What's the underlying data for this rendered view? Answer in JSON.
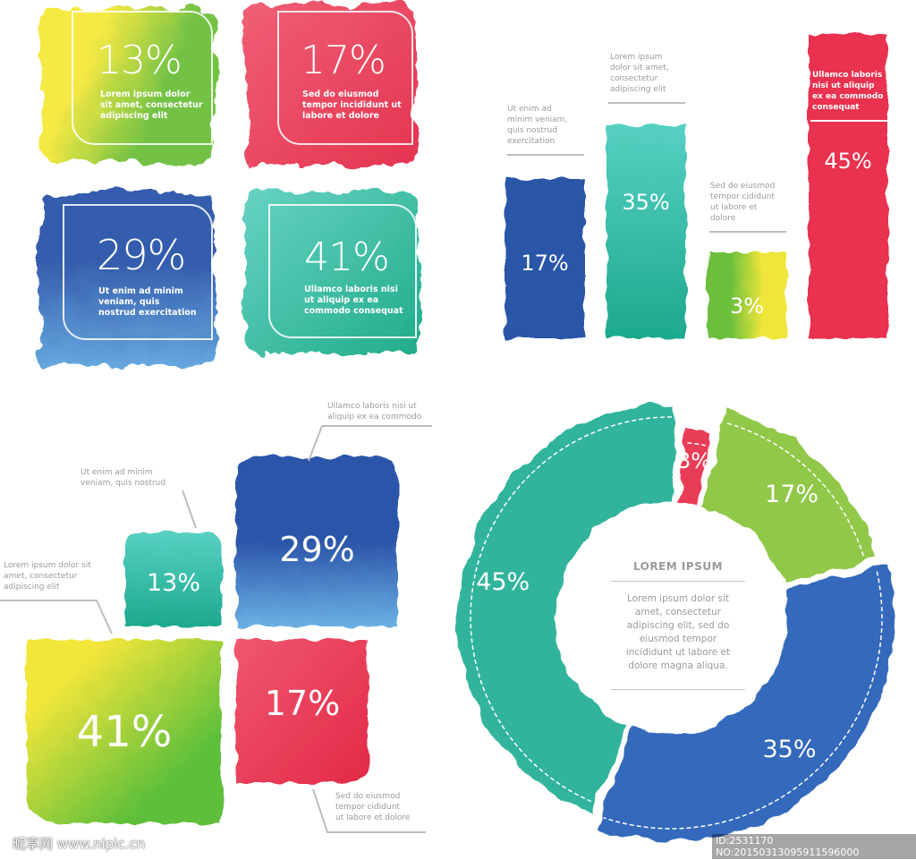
{
  "chart_data": [
    {
      "type": "table",
      "label": "callout boxes",
      "items": [
        {
          "value": "13%",
          "text": [
            "Lorem ipsum dolor",
            "sit amet, consectetur",
            "adipiscing elit"
          ],
          "color": "#8bc53f"
        },
        {
          "value": "17%",
          "text": [
            "Sed do eiusmod",
            "tempor incididunt ut",
            "labore et dolore"
          ],
          "color": "#e8314f"
        },
        {
          "value": "29%",
          "text": [
            "Ut enim ad minim",
            "veniam, quis",
            "nostrud exercitation"
          ],
          "color": "#2a56a8"
        },
        {
          "value": "41%",
          "text": [
            "Ullamco laboris nisi",
            "ut aliquip ex ea",
            "commodo consequat"
          ],
          "color": "#1fae8f"
        }
      ]
    },
    {
      "type": "bar",
      "categories": [
        "17%",
        "35%",
        "3%",
        "45%"
      ],
      "values": [
        17,
        35,
        3,
        45
      ],
      "labels": [
        "17%",
        "35%",
        "3%",
        "45%"
      ],
      "annotations": [
        [
          "Ut enim ad",
          "minim veniam,",
          "quis nostrud",
          "exercitation"
        ],
        [
          "Lorem ipsum",
          "dolor sit amet,",
          "consectetur",
          "adipiscing elit"
        ],
        [
          "Sed do eiusmod",
          "tempor cididunt",
          "ut labore et",
          "dolore"
        ],
        [
          "Ullamco laboris",
          "nisi ut aliquip",
          "ex ea commodo",
          "consequat"
        ]
      ],
      "colors": [
        "#2a56a8",
        "#27b39a",
        "#9ccc3a",
        "#e8314f"
      ],
      "ylim": [
        0,
        45
      ]
    },
    {
      "type": "table",
      "label": "quadrant blobs",
      "items": [
        {
          "value": "13%",
          "text": [
            "Ut enim ad minim",
            "veniam, quis nostrud"
          ],
          "color": "#23a98a"
        },
        {
          "value": "29%",
          "text": [
            "Ullamco laboris nisi ut",
            "aliquip ex ea commodo"
          ],
          "color": "#2a56a8"
        },
        {
          "value": "41%",
          "text": [
            "Lorem ipsum dolor sit",
            "amet, consectetur",
            "adipiscing elit"
          ],
          "color": "#8cc63f"
        },
        {
          "value": "17%",
          "text": [
            "Sed do eiusmod",
            "tempor cididunt",
            "ut labore et dolore"
          ],
          "color": "#e8314f"
        }
      ]
    },
    {
      "type": "pie",
      "title": "LOREM IPSUM",
      "center_text": [
        "Lorem ipsum dolor sit",
        "amet, consectetur",
        "adipiscing elit, sed do",
        "eiusmod tempor",
        "incididunt ut labore et",
        "dolore magna aliqua."
      ],
      "slices": [
        {
          "label": "3%",
          "value": 3,
          "color": "#e8314f"
        },
        {
          "label": "17%",
          "value": 17,
          "color": "#8cc63f"
        },
        {
          "label": "35%",
          "value": 35,
          "color": "#2a62b8"
        },
        {
          "label": "45%",
          "value": 45,
          "color": "#25b096"
        }
      ]
    }
  ],
  "watermark": {
    "left": "昵享网 www.nipic.cn",
    "right": "ID:2531170 NO:20150313095911596000"
  }
}
